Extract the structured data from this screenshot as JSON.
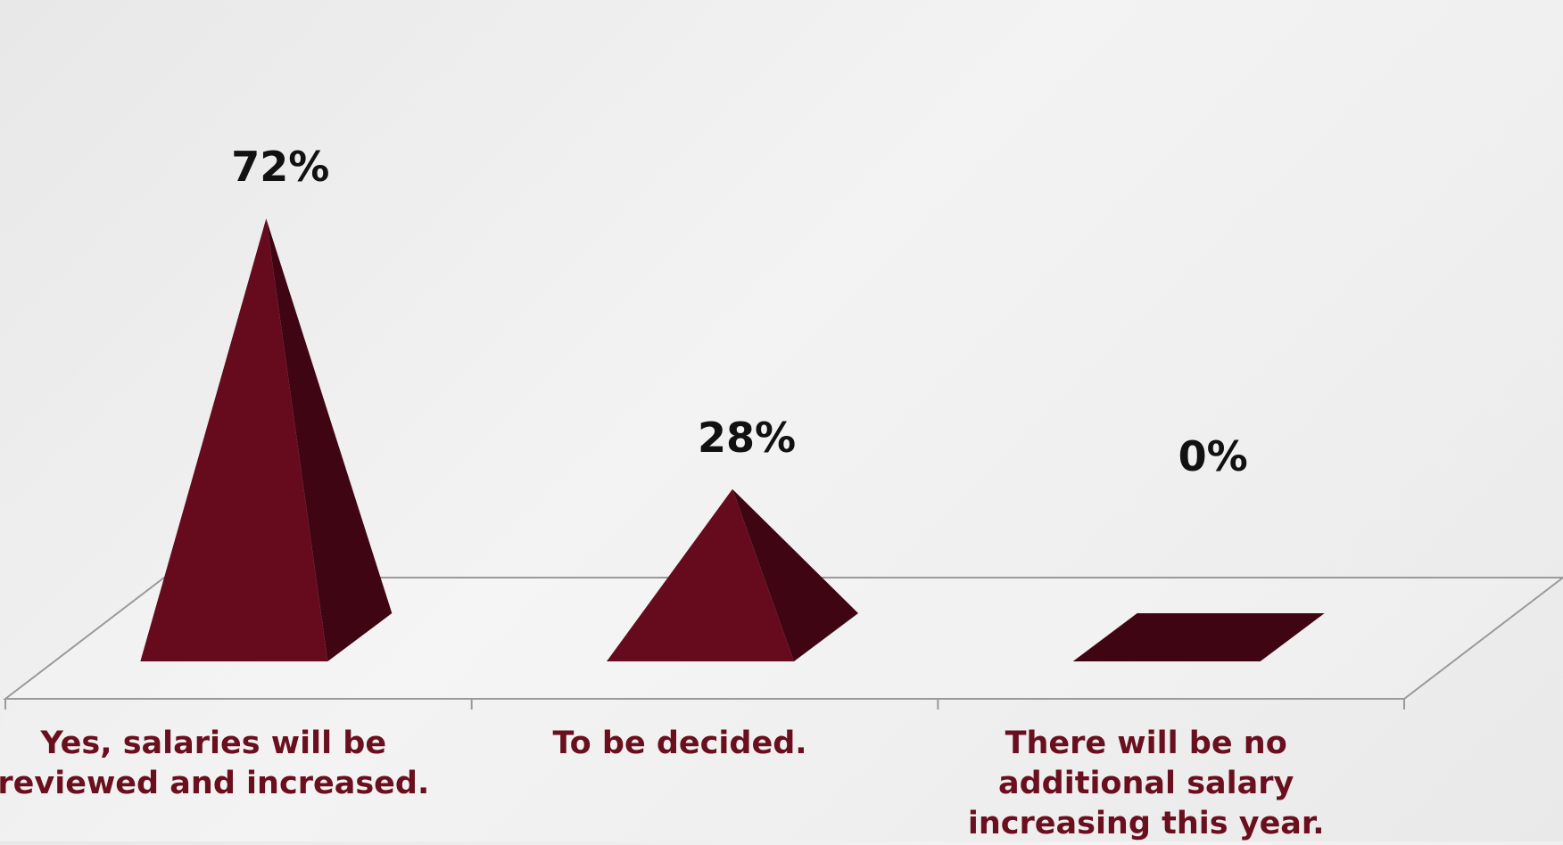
{
  "chart_data": {
    "type": "bar",
    "style": "3d-pyramid",
    "categories": [
      [
        "Yes, salaries will be",
        "reviewed and increased."
      ],
      [
        "To be decided."
      ],
      [
        "There will be no",
        "additional salary",
        "increasing this year."
      ]
    ],
    "values": [
      72,
      28,
      0
    ],
    "value_labels": [
      "72%",
      "28%",
      "0%"
    ],
    "ylim": [
      0,
      100
    ],
    "legend": "none",
    "grid": false
  },
  "colors": {
    "front_face": "#660b1e",
    "side_face": "#400513",
    "category_text": "#6a0f1e",
    "value_text": "#111111",
    "floor_line": "#9a9a9a"
  }
}
